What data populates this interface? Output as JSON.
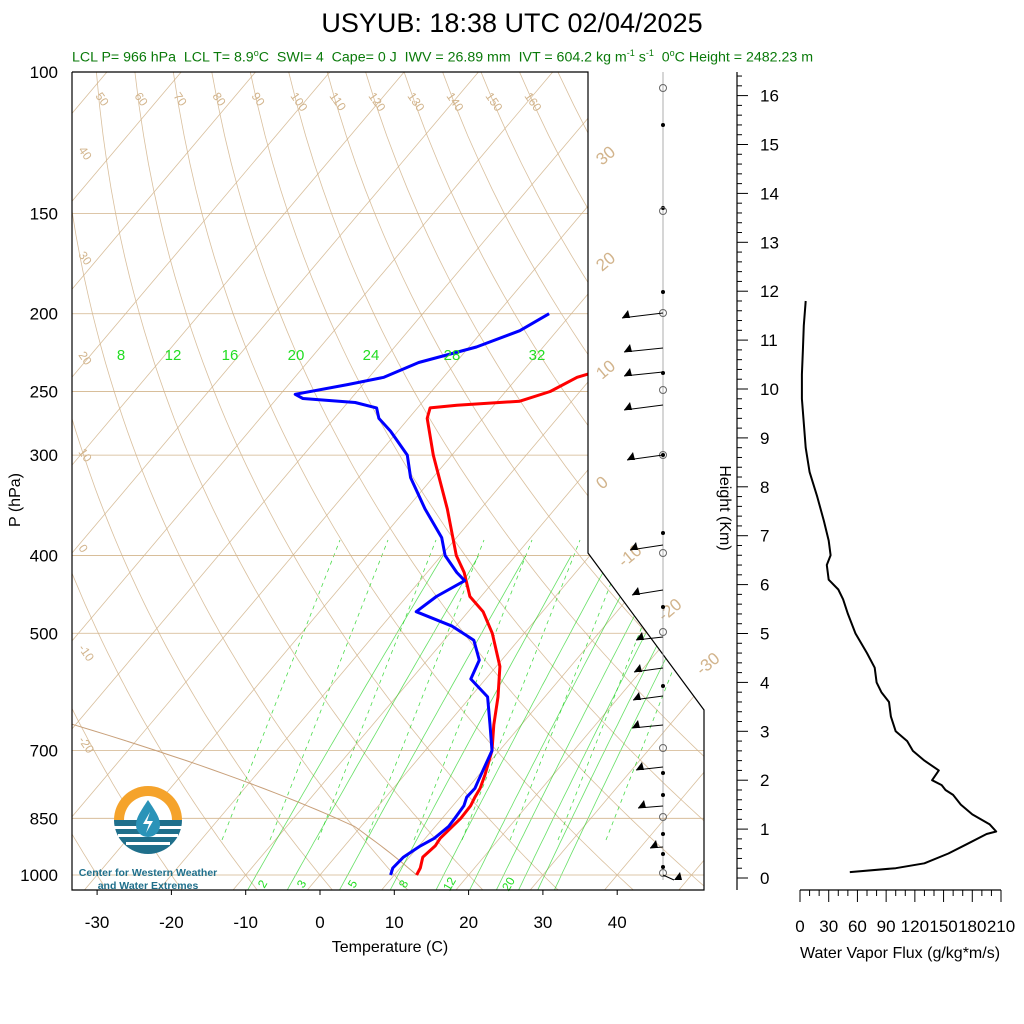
{
  "title": "USYUB: 18:38 UTC 02/04/2025",
  "subtitle": {
    "lcl_p": "LCL P= 966 hPa",
    "lcl_t": "LCL T= 8.9",
    "lcl_t_unit": "C",
    "swi": "SWI= 4",
    "cape": "Cape= 0 J",
    "iwv": "IWV = 26.89 mm",
    "ivt": "IVT = 604.2 kg m",
    "ivt_m_exp": "-1",
    "ivt_s": "s",
    "ivt_s_exp": "-1",
    "zero_height": "0",
    "zero_height_rest": "C Height = 2482.23 m"
  },
  "logo": {
    "line1": "Center for Western Weather",
    "line2": "and Water Extremes"
  },
  "colors": {
    "temperature": "#ff0000",
    "dewpoint": "#0000ff",
    "mixing_ratio": "#00cc00",
    "isobars_isotherms": "#d2b48c",
    "flux_line": "#000000",
    "subtitle": "#0a7a0a"
  },
  "chart_data": [
    {
      "type": "line",
      "subtype": "skew-t log-p",
      "xlabel": "Temperature (C)",
      "ylabel": "P (hPa)",
      "x_ticks": [
        -30,
        -20,
        -10,
        0,
        10,
        20,
        30,
        40
      ],
      "y_ticks": [
        100,
        150,
        200,
        250,
        300,
        400,
        500,
        700,
        850,
        1000
      ],
      "xlim": [
        -34,
        50
      ],
      "ylim": [
        1050,
        100
      ],
      "y_scale": "log",
      "isotherm_labels": [
        -50,
        -40,
        -30,
        -20,
        -10,
        0,
        10,
        20,
        30
      ],
      "dry_adiabat_labels": [
        50,
        60,
        70,
        80,
        90,
        100,
        110,
        120,
        130,
        140,
        150,
        160,
        40,
        30,
        20,
        10,
        0,
        -10,
        -20
      ],
      "mixing_ratio_labels_top": [
        8,
        12,
        16,
        20,
        24,
        28,
        32
      ],
      "mixing_ratio_labels_bottom": [
        2,
        3,
        5,
        8,
        12,
        20
      ],
      "series": [
        {
          "name": "Temperature",
          "points": [
            [
              1000,
              13.0
            ],
            [
              980,
              12.7
            ],
            [
              950,
              11.8
            ],
            [
              920,
              12.2
            ],
            [
              900,
              12.0
            ],
            [
              870,
              12.3
            ],
            [
              850,
              12.5
            ],
            [
              820,
              12.4
            ],
            [
              800,
              12.0
            ],
            [
              780,
              11.7
            ],
            [
              750,
              10.8
            ],
            [
              700,
              9.0
            ],
            [
              650,
              6.3
            ],
            [
              600,
              3.7
            ],
            [
              550,
              0.5
            ],
            [
              500,
              -4.3
            ],
            [
              470,
              -8.0
            ],
            [
              450,
              -11.5
            ],
            [
              420,
              -15.0
            ],
            [
              400,
              -18.0
            ],
            [
              350,
              -24.5
            ],
            [
              300,
              -32.5
            ],
            [
              270,
              -37.5
            ],
            [
              262,
              -38.3
            ],
            [
              260,
              -35.0
            ],
            [
              257,
              -27.0
            ],
            [
              250,
              -24.0
            ],
            [
              240,
              -22.0
            ],
            [
              230,
              -17.0
            ],
            [
              220,
              -12.5
            ],
            [
              210,
              -10.0
            ],
            [
              200,
              -8.0
            ]
          ]
        },
        {
          "name": "Dew point",
          "points": [
            [
              1000,
              9.5
            ],
            [
              980,
              9.0
            ],
            [
              950,
              9.2
            ],
            [
              920,
              10.2
            ],
            [
              900,
              11.2
            ],
            [
              870,
              11.8
            ],
            [
              850,
              11.7
            ],
            [
              820,
              11.5
            ],
            [
              800,
              10.9
            ],
            [
              780,
              11.0
            ],
            [
              760,
              10.5
            ],
            [
              700,
              9.0
            ],
            [
              650,
              5.8
            ],
            [
              600,
              2.3
            ],
            [
              570,
              -2.0
            ],
            [
              540,
              -3.0
            ],
            [
              510,
              -6.0
            ],
            [
              490,
              -10.5
            ],
            [
              470,
              -17.0
            ],
            [
              450,
              -16.0
            ],
            [
              430,
              -14.0
            ],
            [
              420,
              -16.0
            ],
            [
              400,
              -19.5
            ],
            [
              380,
              -22.0
            ],
            [
              350,
              -27.5
            ],
            [
              320,
              -33.0
            ],
            [
              300,
              -36.0
            ],
            [
              280,
              -41.0
            ],
            [
              270,
              -44.0
            ],
            [
              262,
              -45.5
            ],
            [
              258,
              -49.0
            ],
            [
              255,
              -56.5
            ],
            [
              252,
              -58.0
            ],
            [
              245,
              -52.0
            ],
            [
              240,
              -48.0
            ],
            [
              230,
              -45.0
            ],
            [
              220,
              -39.0
            ],
            [
              210,
              -35.0
            ],
            [
              200,
              -33.0
            ]
          ]
        }
      ]
    },
    {
      "type": "line",
      "xlabel": "Water Vapor Flux (g/kg*m/s)",
      "ylabel": "Height (Km)",
      "x_ticks": [
        0,
        30,
        60,
        90,
        120,
        150,
        180,
        210
      ],
      "y_ticks": [
        0,
        1,
        2,
        3,
        4,
        5,
        6,
        7,
        8,
        9,
        10,
        11,
        12,
        13,
        14,
        15,
        16
      ],
      "xlim": [
        0,
        210
      ],
      "ylim": [
        0,
        16.5
      ],
      "series": [
        {
          "name": "Water Vapor Flux",
          "points": [
            [
              52,
              0.12
            ],
            [
              100,
              0.2
            ],
            [
              130,
              0.3
            ],
            [
              155,
              0.5
            ],
            [
              175,
              0.7
            ],
            [
              195,
              0.9
            ],
            [
              205,
              0.95
            ],
            [
              198,
              1.1
            ],
            [
              180,
              1.3
            ],
            [
              168,
              1.5
            ],
            [
              160,
              1.7
            ],
            [
              152,
              1.8
            ],
            [
              148,
              1.9
            ],
            [
              138,
              2.0
            ],
            [
              145,
              2.2
            ],
            [
              130,
              2.4
            ],
            [
              118,
              2.6
            ],
            [
              112,
              2.8
            ],
            [
              100,
              3.0
            ],
            [
              95,
              3.3
            ],
            [
              93,
              3.6
            ],
            [
              85,
              3.8
            ],
            [
              80,
              4.0
            ],
            [
              78,
              4.3
            ],
            [
              70,
              4.6
            ],
            [
              58,
              5.0
            ],
            [
              50,
              5.4
            ],
            [
              45,
              5.7
            ],
            [
              40,
              5.9
            ],
            [
              30,
              6.1
            ],
            [
              28,
              6.4
            ],
            [
              32,
              6.6
            ],
            [
              30,
              6.9
            ],
            [
              25,
              7.3
            ],
            [
              18,
              7.8
            ],
            [
              10,
              8.3
            ],
            [
              6,
              8.8
            ],
            [
              4,
              9.3
            ],
            [
              2,
              9.8
            ],
            [
              2,
              10.3
            ],
            [
              3,
              10.8
            ],
            [
              4,
              11.3
            ],
            [
              6,
              11.8
            ]
          ]
        }
      ]
    }
  ]
}
